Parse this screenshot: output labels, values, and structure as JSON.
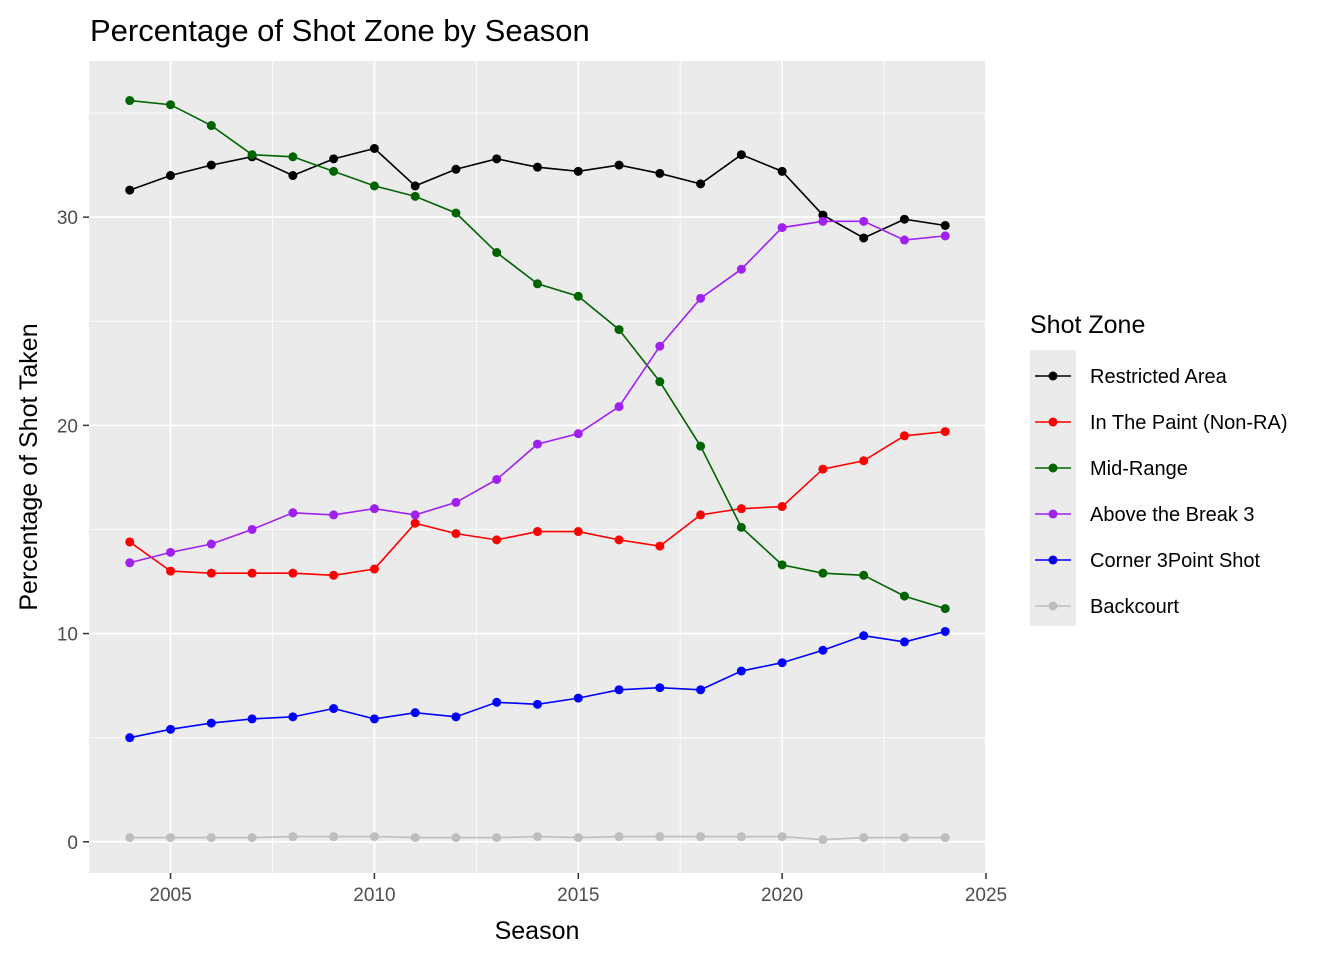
{
  "chart_data": {
    "type": "line",
    "title": "Percentage of Shot Zone by Season",
    "xlabel": "Season",
    "ylabel": "Percentage of Shot Taken",
    "xlim": [
      2003,
      2025
    ],
    "ylim": [
      -1.5,
      37.5
    ],
    "x_ticks": [
      2005,
      2010,
      2015,
      2020,
      2025
    ],
    "y_ticks": [
      0,
      10,
      20,
      30
    ],
    "grid": true,
    "legend_title": "Shot Zone",
    "legend_position": "right",
    "x": [
      2004,
      2005,
      2006,
      2007,
      2008,
      2009,
      2010,
      2011,
      2012,
      2013,
      2014,
      2015,
      2016,
      2017,
      2018,
      2019,
      2020,
      2021,
      2022,
      2023,
      2024
    ],
    "series": [
      {
        "name": "Restricted Area",
        "color": "#000000",
        "values": [
          31.3,
          32.0,
          32.5,
          32.9,
          32.0,
          32.8,
          33.3,
          31.5,
          32.3,
          32.8,
          32.4,
          32.2,
          32.5,
          32.1,
          31.6,
          33.0,
          32.2,
          30.1,
          29.0,
          29.9,
          29.6
        ]
      },
      {
        "name": "In The Paint (Non-RA)",
        "color": "#ff0000",
        "values": [
          14.4,
          13.0,
          12.9,
          12.9,
          12.9,
          12.8,
          13.1,
          15.3,
          14.8,
          14.5,
          14.9,
          14.9,
          14.5,
          14.2,
          15.7,
          16.0,
          16.1,
          17.9,
          18.3,
          19.5,
          19.7
        ]
      },
      {
        "name": "Mid-Range",
        "color": "#006400",
        "values": [
          35.6,
          35.4,
          34.4,
          33.0,
          32.9,
          32.2,
          31.5,
          31.0,
          30.2,
          28.3,
          26.8,
          26.2,
          24.6,
          22.1,
          19.0,
          15.1,
          13.3,
          12.9,
          12.8,
          11.8,
          11.2
        ]
      },
      {
        "name": "Above the Break 3",
        "color": "#a020f0",
        "values": [
          13.4,
          13.9,
          14.3,
          15.0,
          15.8,
          15.7,
          16.0,
          15.7,
          16.3,
          17.4,
          19.1,
          19.6,
          20.9,
          23.8,
          26.1,
          27.5,
          29.5,
          29.8,
          29.8,
          28.9,
          29.1
        ]
      },
      {
        "name": "Corner 3Point Shot",
        "color": "#0000ff",
        "values": [
          5.0,
          5.4,
          5.7,
          5.9,
          6.0,
          6.4,
          5.9,
          6.2,
          6.0,
          6.7,
          6.6,
          6.9,
          7.3,
          7.4,
          7.3,
          8.2,
          8.6,
          9.2,
          9.9,
          9.6,
          10.1
        ]
      },
      {
        "name": "Backcourt",
        "color": "#bebebe",
        "values": [
          0.2,
          0.2,
          0.2,
          0.2,
          0.25,
          0.25,
          0.25,
          0.2,
          0.2,
          0.2,
          0.25,
          0.2,
          0.25,
          0.25,
          0.25,
          0.25,
          0.25,
          0.1,
          0.2,
          0.2,
          0.2
        ]
      }
    ]
  }
}
